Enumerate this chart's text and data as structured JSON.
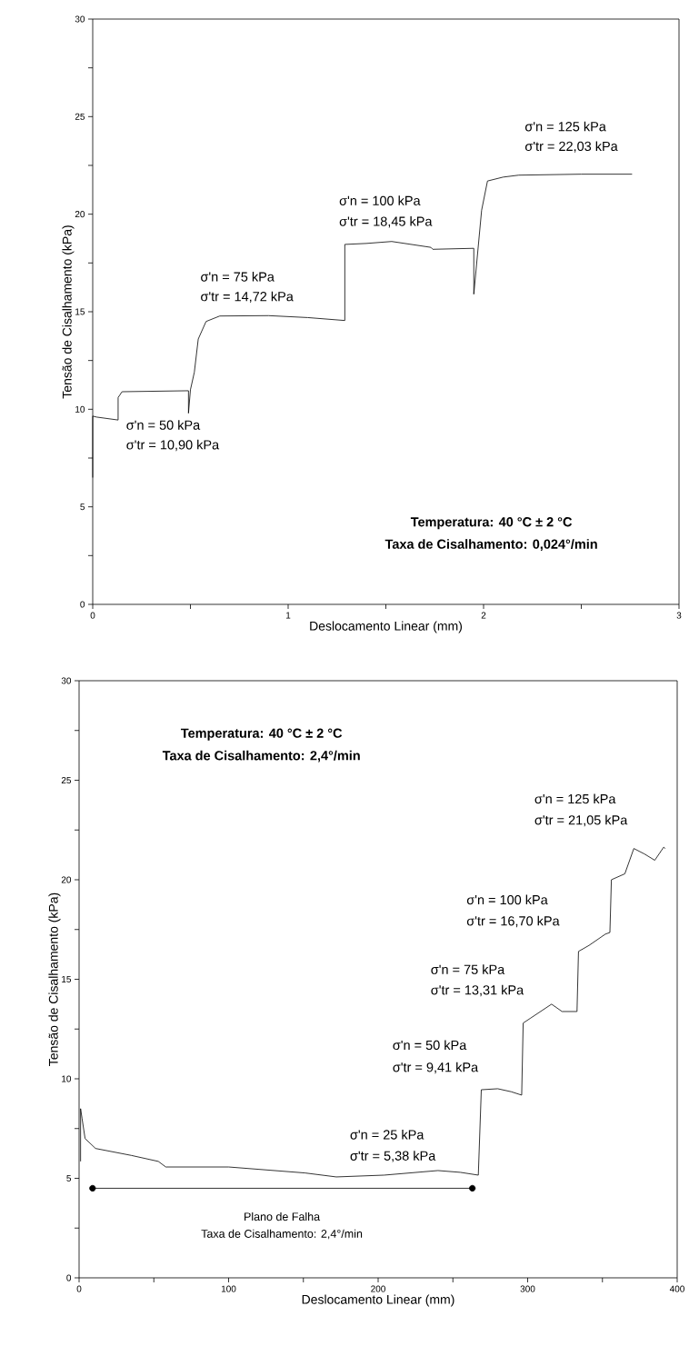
{
  "chart_data": [
    {
      "type": "line",
      "xlabel": "Deslocamento Linear (mm)",
      "ylabel": "Tensão de Cisalhamento (kPa)",
      "xlim": [
        0,
        3
      ],
      "ylim": [
        0,
        30
      ],
      "xticks": [
        0,
        {
          "value": 0.5,
          "label": null
        },
        1,
        {
          "value": 1.5,
          "label": null
        },
        2,
        {
          "value": 2.5,
          "label": null
        },
        3
      ],
      "yticks": [
        0,
        {
          "value": 2.5,
          "label": null
        },
        5,
        {
          "value": 7.5,
          "label": null
        },
        10,
        {
          "value": 12.5,
          "label": null
        },
        15,
        {
          "value": 17.5,
          "label": null
        },
        20,
        {
          "value": 22.5,
          "label": null
        },
        25,
        {
          "value": 27.5,
          "label": null
        },
        30
      ],
      "grid": false,
      "marker": "none",
      "line_style": "solid",
      "series": [
        {
          "color": "#000000",
          "x": [
            0,
            0,
            0.02,
            0.13,
            0.13,
            0.15,
            0.49,
            0.49,
            0.5,
            0.52,
            0.54,
            0.58,
            0.65,
            0.9,
            1.1,
            1.29,
            1.29,
            1.4,
            1.53,
            1.73,
            1.74,
            1.95,
            1.95,
            1.99,
            2.02,
            2.1,
            2.18,
            2.5,
            2.76
          ],
          "values": [
            6.5,
            9.65,
            9.6,
            9.45,
            10.6,
            10.9,
            10.95,
            9.8,
            11.0,
            11.9,
            13.6,
            14.5,
            14.78,
            14.8,
            14.7,
            14.55,
            18.45,
            18.5,
            18.6,
            18.3,
            18.2,
            18.25,
            15.9,
            20.2,
            21.7,
            21.9,
            22.0,
            22.05,
            22.05
          ]
        }
      ],
      "annotations": [
        "σ'n = 50 kPa",
        "σ'tr = 10,90 kPa",
        "σ'n = 75 kPa",
        "σ'tr = 14,72 kPa",
        "σ'n = 100 kPa",
        "σ'tr = 18,45 kPa",
        "σ'n = 125 kPa",
        "σ'tr = 22,03 kPa",
        "Temperatura: 40 °C ± 2 °C",
        "Taxa de Cisalhamento: 0,024°/min"
      ]
    },
    {
      "type": "line",
      "xlabel": "Deslocamento Linear (mm)",
      "ylabel": "Tensão de Cisalhamento (kPa)",
      "xlim": [
        0,
        400
      ],
      "ylim": [
        0,
        30
      ],
      "xticks": [
        0,
        {
          "value": 50,
          "label": null
        },
        100,
        {
          "value": 150,
          "label": null
        },
        200,
        {
          "value": 250,
          "label": null
        },
        300,
        {
          "value": 350,
          "label": null
        },
        400
      ],
      "yticks": [
        0,
        {
          "value": 2.5,
          "label": null
        },
        5,
        {
          "value": 7.5,
          "label": null
        },
        10,
        {
          "value": 12.5,
          "label": null
        },
        15,
        {
          "value": 17.5,
          "label": null
        },
        20,
        {
          "value": 22.5,
          "label": null
        },
        25,
        {
          "value": 27.5,
          "label": null
        },
        30
      ],
      "grid": false,
      "marker": "none",
      "line_style": "solid",
      "series": [
        {
          "color": "#000000",
          "x": [
            1,
            1,
            2,
            4,
            11,
            35,
            53,
            58,
            100,
            151,
            172,
            204,
            240,
            255,
            267,
            269,
            280,
            289,
            296,
            297,
            302,
            316,
            323,
            333,
            334,
            341,
            352,
            355,
            356,
            365,
            371,
            378,
            385,
            391,
            392
          ],
          "values": [
            5.85,
            8.5,
            8.0,
            7.0,
            6.5,
            6.15,
            5.85,
            5.57,
            5.57,
            5.27,
            5.07,
            5.16,
            5.39,
            5.3,
            5.16,
            9.45,
            9.5,
            9.35,
            9.18,
            12.8,
            13.05,
            13.75,
            13.38,
            13.38,
            16.4,
            16.7,
            17.27,
            17.35,
            20.0,
            20.3,
            21.57,
            21.3,
            20.98,
            21.64,
            21.57
          ]
        },
        {
          "color": "#000000",
          "marker": "circle",
          "x": [
            9,
            263
          ],
          "values": [
            4.5,
            4.5
          ]
        }
      ],
      "annotations": [
        "Temperatura: 40 °C ± 2 °C",
        "Taxa de Cisalhamento: 2,4°/min",
        "σ'n = 125 kPa",
        "σ'tr = 21,05 kPa",
        "σ'n = 100 kPa",
        "σ'tr = 16,70 kPa",
        "σ'n = 75 kPa",
        "σ'tr = 13,31 kPa",
        "σ'n = 50 kPa",
        "σ'tr = 9,41 kPa",
        "σ'n = 25 kPa",
        "σ'tr = 5,38 kPa",
        "Plano de Falha",
        "Taxa de Cisalhamento: 2,4°/min"
      ]
    }
  ]
}
